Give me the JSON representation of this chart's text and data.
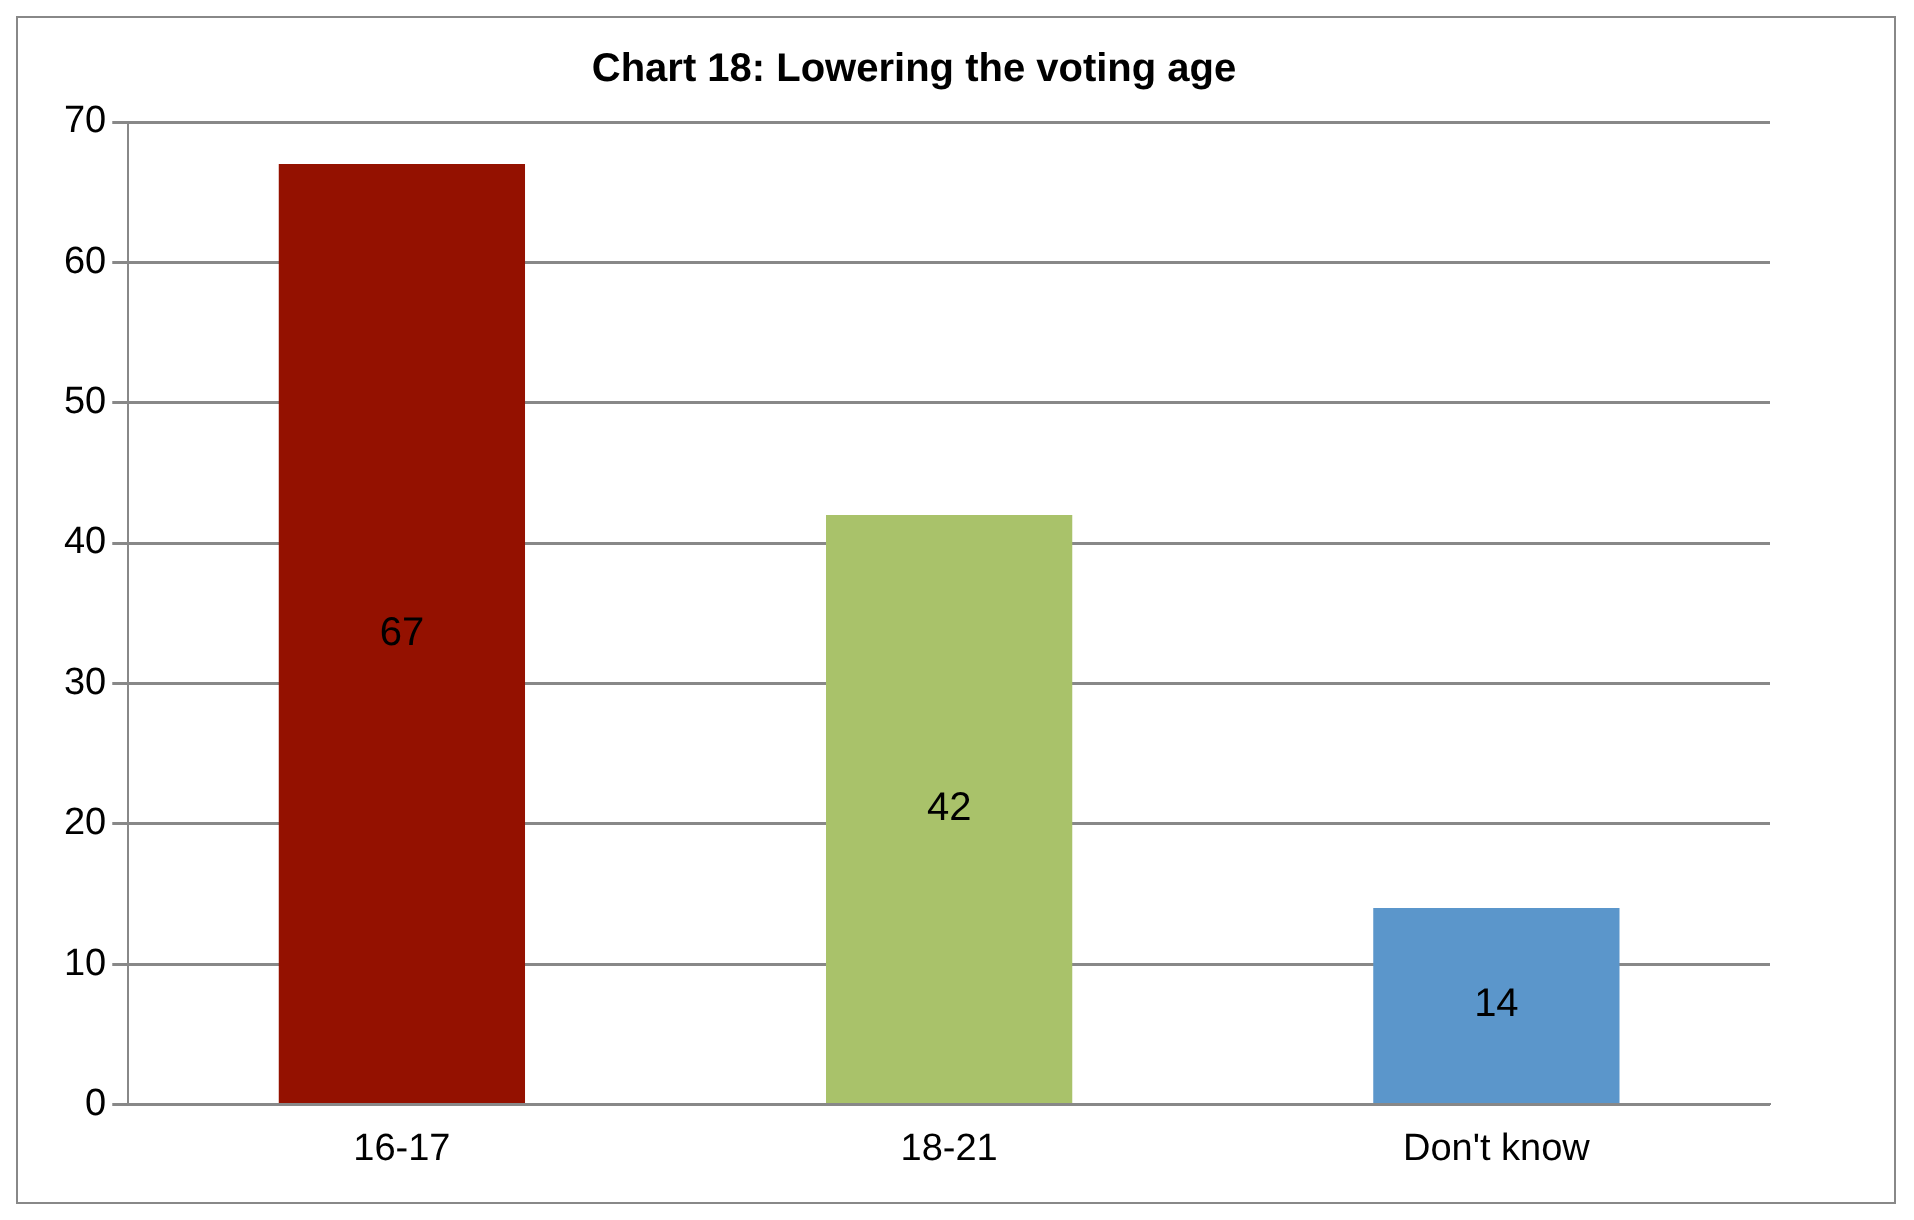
{
  "chart_data": {
    "type": "bar",
    "title": "Chart 18: Lowering the voting age",
    "categories": [
      "16-17",
      "18-21",
      "Don't know"
    ],
    "values": [
      67,
      42,
      14
    ],
    "colors": [
      "#941100",
      "#a9c26a",
      "#5b96cb"
    ],
    "ylim": [
      0,
      70
    ],
    "yticks": [
      0,
      10,
      20,
      30,
      40,
      50,
      60,
      70
    ],
    "grid": "y",
    "data_labels": true,
    "legend": false
  }
}
